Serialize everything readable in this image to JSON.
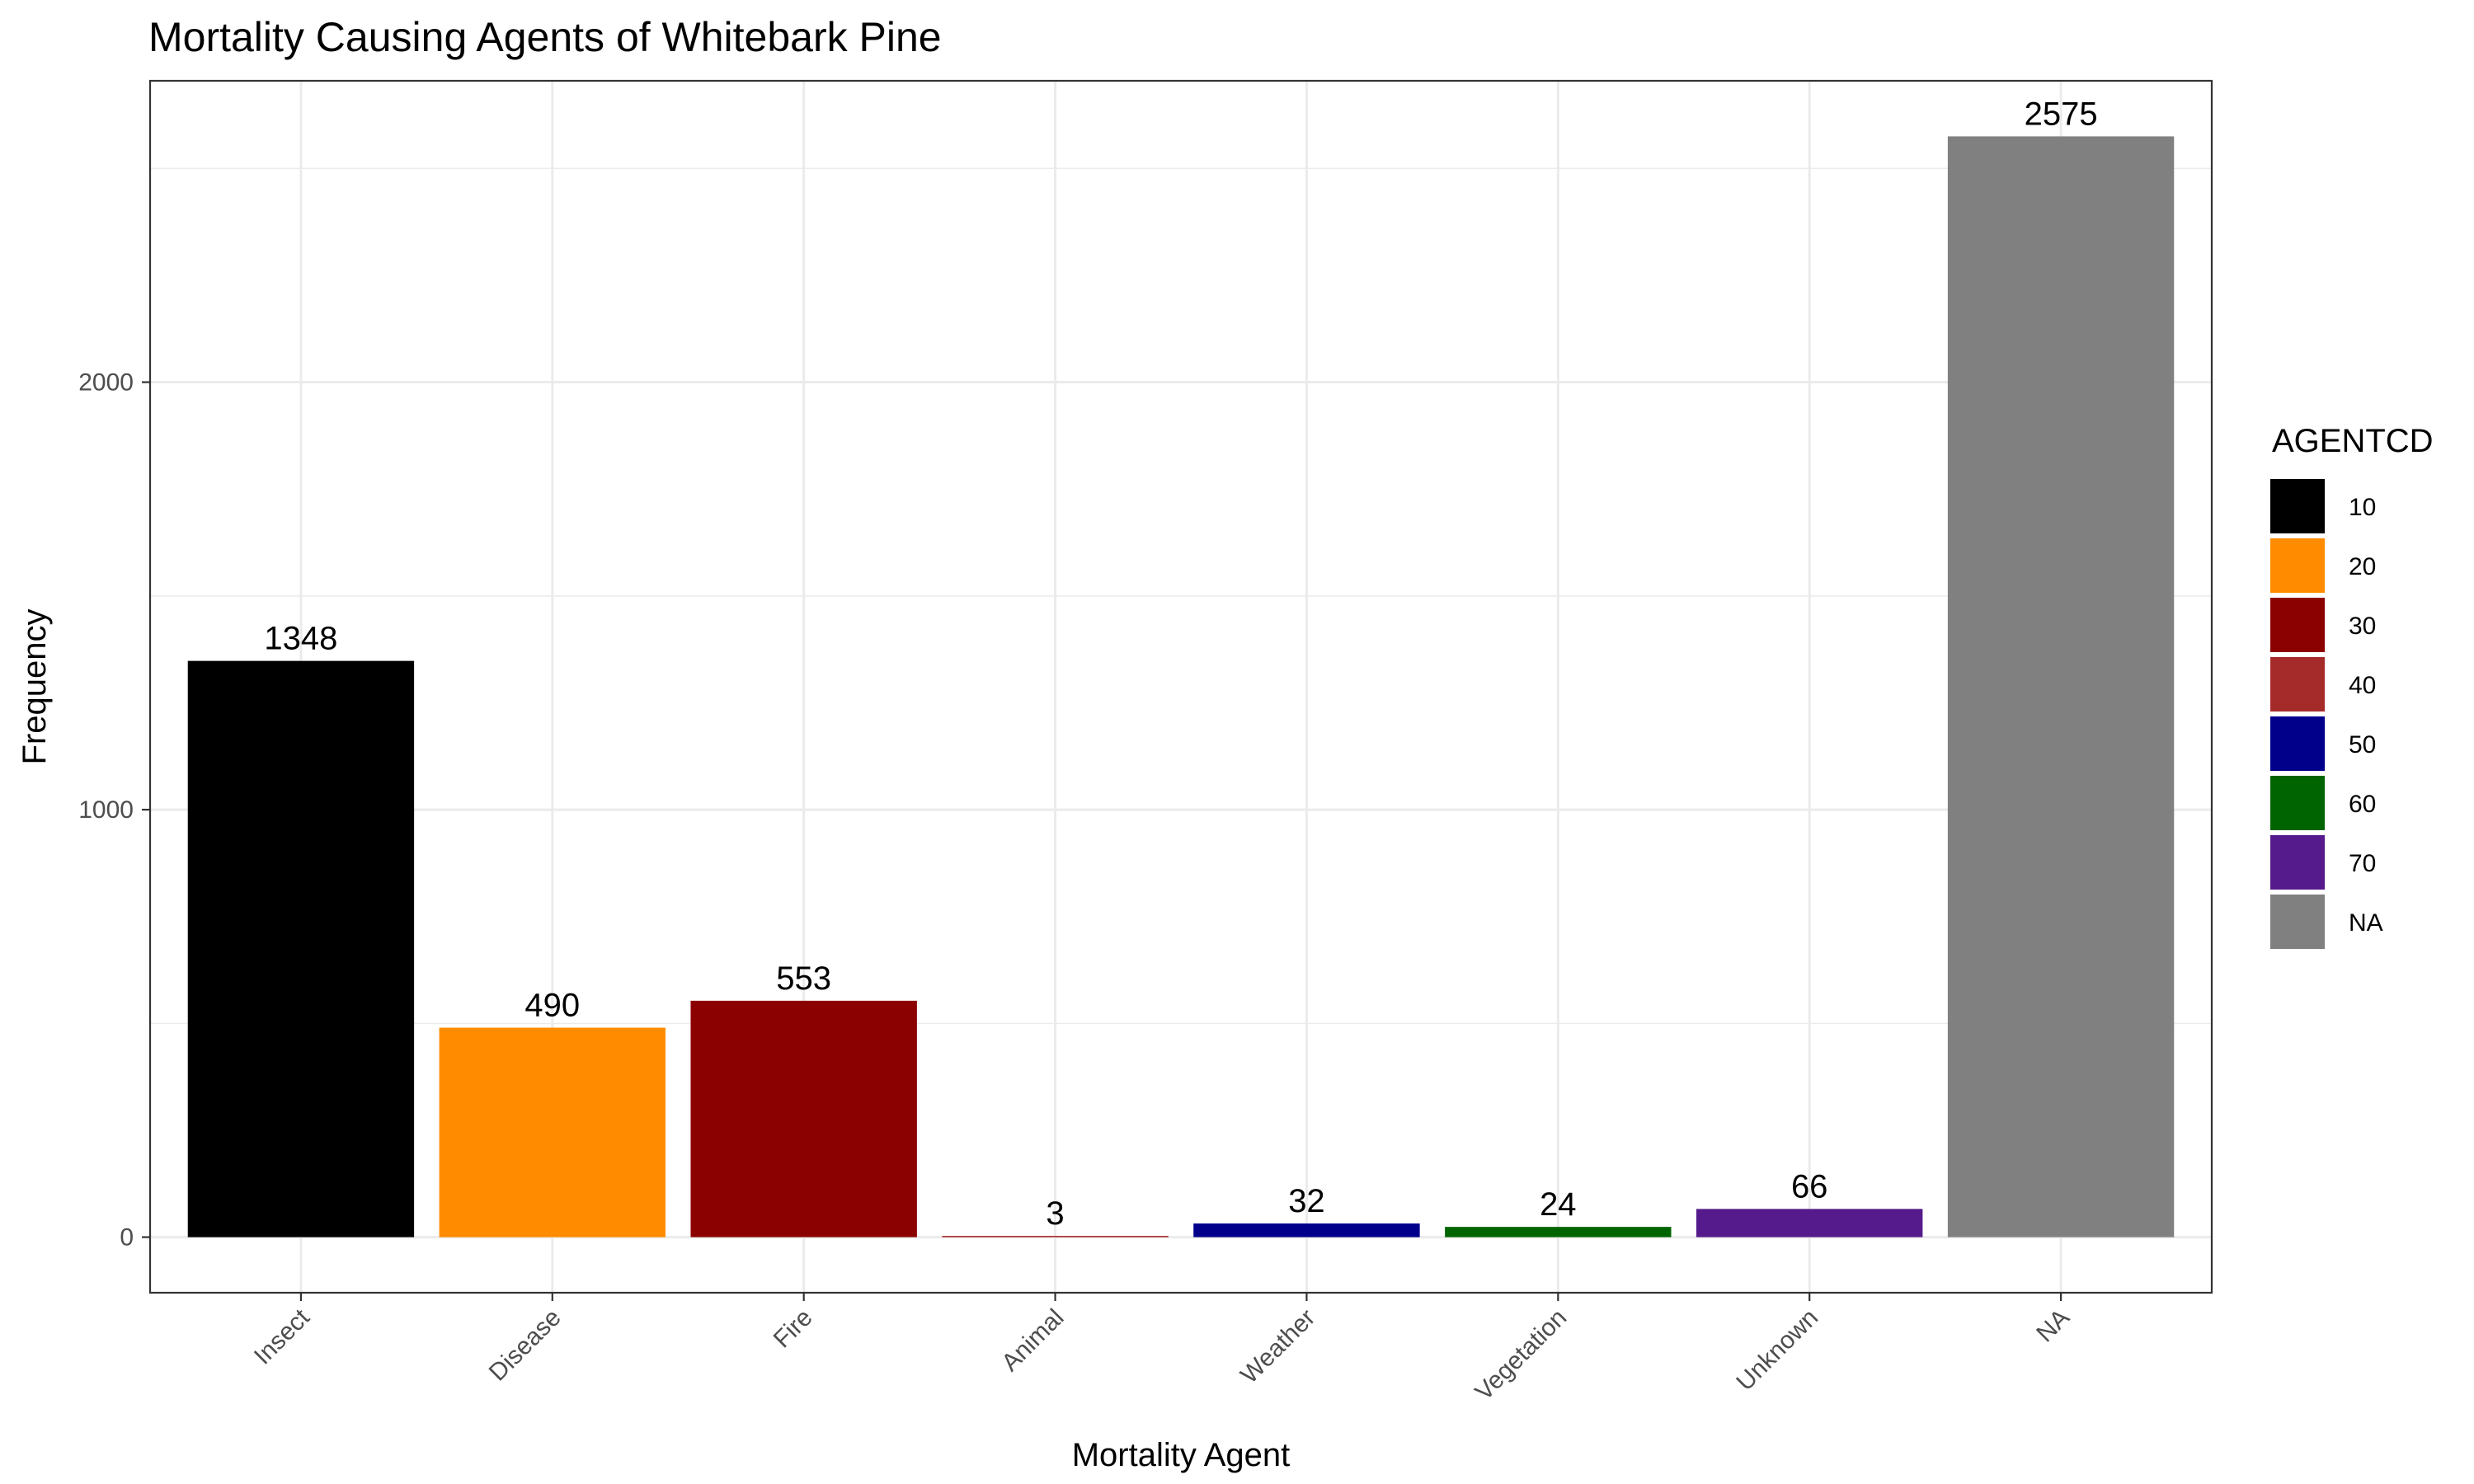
{
  "chart_data": {
    "type": "bar",
    "title": "Mortality Causing Agents of Whitebark Pine",
    "xlabel": "Mortality Agent",
    "ylabel": "Frequency",
    "categories": [
      "Insect",
      "Disease",
      "Fire",
      "Animal",
      "Weather",
      "Vegetation",
      "Unknown",
      "NA"
    ],
    "values": [
      1348,
      490,
      553,
      3,
      32,
      24,
      66,
      2575
    ],
    "data_labels": [
      "1348",
      "490",
      "553",
      "3",
      "32",
      "24",
      "66",
      "2575"
    ],
    "colors": [
      "#000000",
      "#FF8C00",
      "#8B0000",
      "#A52A2A",
      "#00008B",
      "#006400",
      "#551A8B",
      "#808080"
    ],
    "ylim": [
      -130,
      2705
    ],
    "y_ticks": [
      0,
      1000,
      2000
    ],
    "y_tick_labels": [
      "0",
      "1000",
      "2000"
    ],
    "grid": true,
    "legend": {
      "title": "AGENTCD",
      "position": "right",
      "entries": [
        {
          "label": "10",
          "color": "#000000"
        },
        {
          "label": "20",
          "color": "#FF8C00"
        },
        {
          "label": "30",
          "color": "#8B0000"
        },
        {
          "label": "40",
          "color": "#A52A2A"
        },
        {
          "label": "50",
          "color": "#00008B"
        },
        {
          "label": "60",
          "color": "#006400"
        },
        {
          "label": "70",
          "color": "#551A8B"
        },
        {
          "label": "NA",
          "color": "#808080"
        }
      ]
    }
  }
}
